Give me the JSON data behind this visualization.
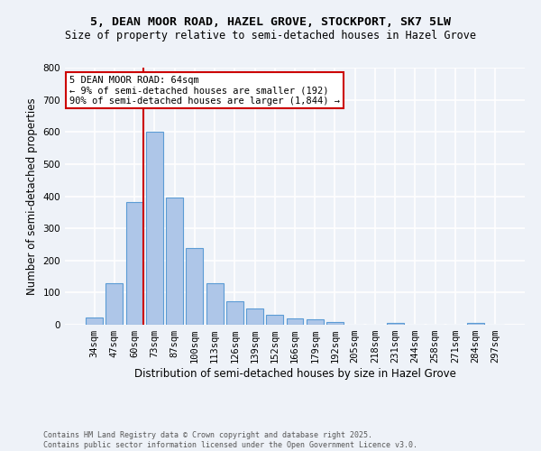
{
  "title1": "5, DEAN MOOR ROAD, HAZEL GROVE, STOCKPORT, SK7 5LW",
  "title2": "Size of property relative to semi-detached houses in Hazel Grove",
  "xlabel": "Distribution of semi-detached houses by size in Hazel Grove",
  "ylabel": "Number of semi-detached properties",
  "categories": [
    "34sqm",
    "47sqm",
    "60sqm",
    "73sqm",
    "87sqm",
    "100sqm",
    "113sqm",
    "126sqm",
    "139sqm",
    "152sqm",
    "166sqm",
    "179sqm",
    "192sqm",
    "205sqm",
    "218sqm",
    "231sqm",
    "244sqm",
    "258sqm",
    "271sqm",
    "284sqm",
    "297sqm"
  ],
  "values": [
    22,
    128,
    382,
    600,
    395,
    240,
    128,
    72,
    50,
    30,
    20,
    18,
    8,
    0,
    0,
    5,
    0,
    0,
    0,
    5,
    0
  ],
  "bar_color": "#aec6e8",
  "bar_edge_color": "#5b9bd5",
  "vline_x_index": 2.43,
  "subject_label": "5 DEAN MOOR ROAD: 64sqm",
  "annotation_line1": "← 9% of semi-detached houses are smaller (192)",
  "annotation_line2": "90% of semi-detached houses are larger (1,844) →",
  "ylim": [
    0,
    800
  ],
  "yticks": [
    0,
    100,
    200,
    300,
    400,
    500,
    600,
    700,
    800
  ],
  "footer1": "Contains HM Land Registry data © Crown copyright and database right 2025.",
  "footer2": "Contains public sector information licensed under the Open Government Licence v3.0.",
  "bg_color": "#eef2f8",
  "grid_color": "#ffffff",
  "annotation_box_color": "#ffffff",
  "annotation_box_edge": "#cc0000",
  "vline_color": "#cc0000",
  "title1_fontsize": 9.5,
  "title2_fontsize": 8.5,
  "xlabel_fontsize": 8.5,
  "ylabel_fontsize": 8.5,
  "tick_fontsize": 7.5,
  "ann_fontsize": 7.5,
  "footer_fontsize": 6.0
}
